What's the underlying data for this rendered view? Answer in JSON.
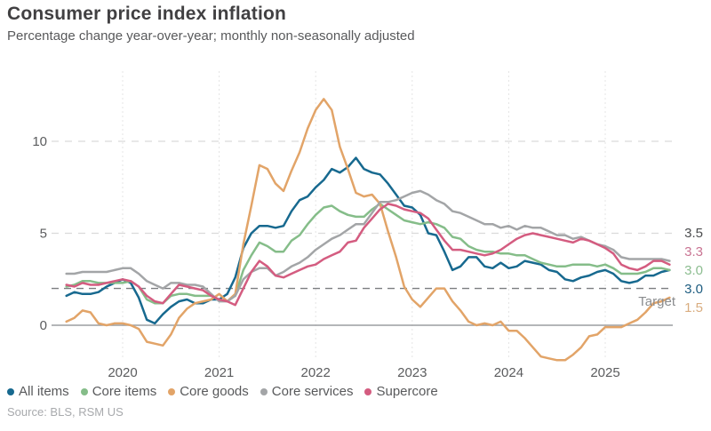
{
  "header": {
    "title": "Consumer price index inflation",
    "subtitle": "Percentage change year-over-year; monthly non-seasonally adjusted"
  },
  "source": "Source: BLS, RSM US",
  "chart_data": {
    "type": "line",
    "title": "Consumer price index inflation",
    "xlabel": "",
    "ylabel": "Percentage change year-over-year",
    "x_axis": {
      "start": "2019-06",
      "end": "2025-09",
      "frequency": "monthly",
      "tick_labels": [
        "2020",
        "2021",
        "2022",
        "2023",
        "2024",
        "2025"
      ]
    },
    "y_axis": {
      "ticks": [
        0,
        5,
        10
      ],
      "gridlines": [
        5,
        10
      ],
      "ylim": [
        -2.6,
        13.8
      ],
      "zero_line": 0
    },
    "target_line": {
      "value": 2,
      "label": "Target",
      "color": "#7b7d80"
    },
    "legend_position": "bottom",
    "series": [
      {
        "name": "All items",
        "color": "#17698f",
        "end_label": "3.0",
        "values": [
          1.6,
          1.8,
          1.7,
          1.7,
          1.8,
          2.1,
          2.3,
          2.5,
          2.3,
          1.5,
          0.3,
          0.1,
          0.6,
          1.0,
          1.3,
          1.4,
          1.2,
          1.2,
          1.4,
          1.4,
          1.7,
          2.6,
          4.2,
          5.0,
          5.4,
          5.4,
          5.3,
          5.4,
          6.2,
          6.8,
          7.0,
          7.5,
          7.9,
          8.5,
          8.3,
          8.6,
          9.1,
          8.5,
          8.3,
          8.2,
          7.7,
          7.1,
          6.5,
          6.4,
          6.0,
          5.0,
          4.9,
          4.0,
          3.0,
          3.2,
          3.7,
          3.7,
          3.2,
          3.1,
          3.4,
          3.1,
          3.2,
          3.5,
          3.4,
          3.3,
          3.0,
          2.9,
          2.5,
          2.4,
          2.6,
          2.7,
          2.9,
          3.0,
          2.8,
          2.4,
          2.3,
          2.4,
          2.7,
          2.7,
          2.9,
          3.0
        ]
      },
      {
        "name": "Core items",
        "color": "#85bd89",
        "end_label": "3.0",
        "values": [
          2.1,
          2.2,
          2.4,
          2.4,
          2.3,
          2.3,
          2.3,
          2.3,
          2.4,
          2.1,
          1.4,
          1.2,
          1.2,
          1.6,
          1.7,
          1.7,
          1.6,
          1.6,
          1.6,
          1.4,
          1.3,
          1.6,
          3.0,
          3.8,
          4.5,
          4.3,
          4.0,
          4.0,
          4.6,
          4.9,
          5.5,
          6.0,
          6.4,
          6.5,
          6.2,
          6.0,
          5.9,
          5.9,
          6.3,
          6.6,
          6.3,
          6.0,
          5.7,
          5.6,
          5.5,
          5.6,
          5.5,
          5.3,
          4.8,
          4.7,
          4.3,
          4.1,
          4.0,
          4.0,
          3.9,
          3.9,
          3.8,
          3.8,
          3.6,
          3.4,
          3.3,
          3.2,
          3.2,
          3.3,
          3.3,
          3.3,
          3.2,
          3.3,
          3.1,
          2.8,
          2.8,
          2.8,
          2.9,
          3.1,
          3.1,
          3.0
        ]
      },
      {
        "name": "Core goods",
        "color": "#e2a468",
        "end_label": "1.5",
        "values": [
          0.2,
          0.4,
          0.8,
          0.7,
          0.1,
          0.0,
          0.1,
          0.1,
          0.0,
          -0.2,
          -0.9,
          -1.0,
          -1.1,
          -0.5,
          0.4,
          0.9,
          1.2,
          1.3,
          1.4,
          1.7,
          1.3,
          1.7,
          4.4,
          6.5,
          8.7,
          8.5,
          7.7,
          7.3,
          8.4,
          9.4,
          10.7,
          11.7,
          12.3,
          11.7,
          9.7,
          8.5,
          7.2,
          7.0,
          7.1,
          6.6,
          5.1,
          3.7,
          2.1,
          1.4,
          1.0,
          1.5,
          2.0,
          2.0,
          1.3,
          0.8,
          0.2,
          0.0,
          0.1,
          0.0,
          0.2,
          -0.3,
          -0.3,
          -0.7,
          -1.2,
          -1.7,
          -1.8,
          -1.9,
          -1.9,
          -1.6,
          -1.2,
          -0.6,
          -0.5,
          -0.1,
          -0.1,
          -0.1,
          0.1,
          0.3,
          0.7,
          1.2,
          1.3,
          1.5
        ]
      },
      {
        "name": "Core services",
        "color": "#a3a5a7",
        "end_label": "3.5",
        "values": [
          2.8,
          2.8,
          2.9,
          2.9,
          2.9,
          2.9,
          3.0,
          3.1,
          3.1,
          2.8,
          2.4,
          2.2,
          2.0,
          2.3,
          2.3,
          2.2,
          2.2,
          2.1,
          1.7,
          1.3,
          1.3,
          1.6,
          2.5,
          2.9,
          3.1,
          3.1,
          2.7,
          2.9,
          3.2,
          3.4,
          3.7,
          4.1,
          4.4,
          4.7,
          4.9,
          5.2,
          5.5,
          5.5,
          6.1,
          6.7,
          6.7,
          6.8,
          7.0,
          7.2,
          7.3,
          7.1,
          6.8,
          6.6,
          6.2,
          6.1,
          5.9,
          5.7,
          5.5,
          5.5,
          5.3,
          5.4,
          5.2,
          5.4,
          5.3,
          5.3,
          5.1,
          4.9,
          4.9,
          4.7,
          4.8,
          4.6,
          4.4,
          4.3,
          4.1,
          3.7,
          3.6,
          3.6,
          3.6,
          3.6,
          3.6,
          3.5
        ]
      },
      {
        "name": "Supercore",
        "color": "#d45c80",
        "end_label": "3.3",
        "values": [
          2.2,
          2.1,
          2.3,
          2.2,
          2.2,
          2.3,
          2.4,
          2.5,
          2.4,
          2.1,
          1.6,
          1.3,
          1.2,
          1.7,
          2.2,
          2.1,
          2.0,
          1.9,
          1.6,
          1.4,
          1.3,
          1.1,
          2.0,
          2.9,
          3.5,
          3.2,
          2.7,
          2.6,
          2.8,
          3.0,
          3.2,
          3.3,
          3.6,
          3.8,
          4.0,
          4.5,
          4.6,
          5.3,
          5.8,
          6.3,
          6.6,
          6.5,
          6.3,
          6.2,
          6.1,
          5.8,
          5.2,
          4.6,
          4.1,
          4.1,
          4.0,
          3.9,
          3.8,
          3.9,
          4.1,
          4.4,
          4.7,
          4.9,
          5.0,
          4.9,
          4.8,
          4.7,
          4.6,
          4.5,
          4.7,
          4.6,
          4.4,
          4.2,
          3.9,
          3.3,
          3.1,
          3.0,
          3.2,
          3.5,
          3.5,
          3.3
        ]
      }
    ],
    "value_labels": [
      {
        "text": "3.5",
        "series": "Core services",
        "color": "#4b4c4e"
      },
      {
        "text": "3.3",
        "series": "Supercore",
        "color": "#c97493"
      },
      {
        "text": "3.0",
        "series": "Core items",
        "color": "#8cbd90"
      },
      {
        "text": "3.0",
        "series": "All items",
        "color": "#1d5c80"
      },
      {
        "text": "1.5",
        "series": "Core goods",
        "color": "#d9ad80"
      }
    ]
  }
}
